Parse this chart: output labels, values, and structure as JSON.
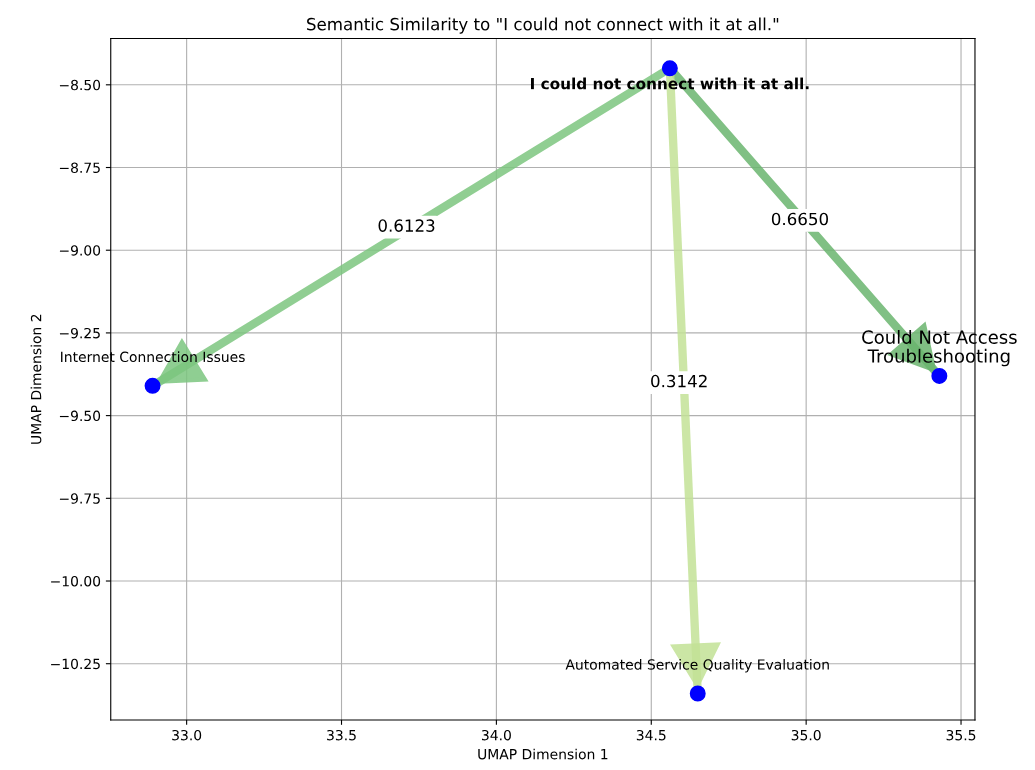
{
  "chart_data": {
    "type": "scatter",
    "title": "Semantic Similarity to \"I could not connect with it at all.\"",
    "xlabel": "UMAP Dimension 1",
    "ylabel": "UMAP Dimension 2",
    "xlim": [
      32.755,
      35.545
    ],
    "xticks": [
      {
        "value": 33.0,
        "label": "33.0"
      },
      {
        "value": 33.5,
        "label": "33.5"
      },
      {
        "value": 34.0,
        "label": "34.0"
      },
      {
        "value": 34.5,
        "label": "34.5"
      },
      {
        "value": 35.0,
        "label": "35.0"
      },
      {
        "value": 35.5,
        "label": "35.5"
      }
    ],
    "ylim": [
      -10.42,
      -8.36
    ],
    "yticks": [
      {
        "value": -8.5,
        "label": "−8.50"
      },
      {
        "value": -8.75,
        "label": "−8.75"
      },
      {
        "value": -9.0,
        "label": "−9.00"
      },
      {
        "value": -9.25,
        "label": "−9.25"
      },
      {
        "value": -9.5,
        "label": "−9.50"
      },
      {
        "value": -9.75,
        "label": "−9.75"
      },
      {
        "value": -10.0,
        "label": "−10.00"
      },
      {
        "value": -10.25,
        "label": "−10.25"
      }
    ],
    "grid": true,
    "series": [
      {
        "type": "line",
        "color": "#7cc67f",
        "x": [
          34.56,
          32.89
        ],
        "values": [
          -8.45,
          -9.41
        ]
      },
      {
        "type": "line",
        "color": "#6ab56e",
        "x": [
          34.56,
          35.43
        ],
        "values": [
          -8.45,
          -9.38
        ]
      },
      {
        "type": "line",
        "color": "#c3e296",
        "x": [
          34.56,
          34.65
        ],
        "values": [
          -8.45,
          -10.34
        ]
      },
      {
        "marker": "circle",
        "color": "#0000ff",
        "x": [
          34.56,
          32.89,
          35.43,
          34.65
        ],
        "values": [
          -8.45,
          -9.41,
          -9.38,
          -10.34
        ]
      }
    ],
    "annotations": [
      {
        "text": "I could not connect with it at all.",
        "x": 34.56,
        "y": -8.45
      },
      {
        "text": "Internet Connection Issues",
        "x": 32.89,
        "y": -9.41
      },
      {
        "text": "Could Not Access\nTroubleshooting",
        "x": 35.43,
        "y": -9.38
      },
      {
        "text": "Automated Service Quality Evaluation",
        "x": 34.65,
        "y": -10.34
      },
      {
        "text": "0.6123",
        "x": 33.71,
        "y": -8.93
      },
      {
        "text": "0.6650",
        "x": 34.98,
        "y": -8.91
      },
      {
        "text": "0.3142",
        "x": 34.59,
        "y": -9.4
      }
    ]
  }
}
